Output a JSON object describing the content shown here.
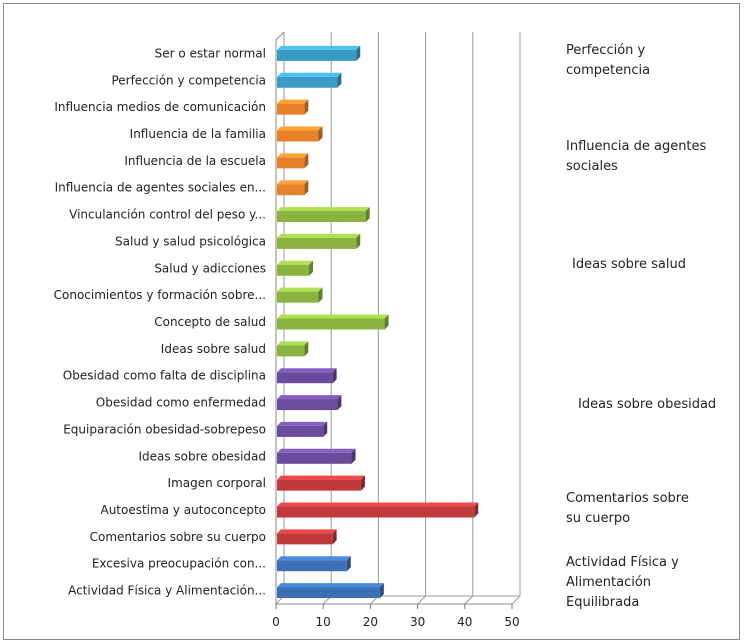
{
  "chart_data": {
    "type": "bar",
    "orientation": "horizontal",
    "title": "",
    "xlabel": "",
    "ylabel": "",
    "xlim": [
      0,
      50
    ],
    "xticks": [
      "0",
      "10",
      "20",
      "30",
      "40",
      "50"
    ],
    "grid": true,
    "categories": [
      "Ser o estar normal",
      "Perfección y competencia",
      "Influencia medios de comunicación",
      "Influencia de la familia",
      "Influencia de la escuela",
      "Influencia de agentes sociales en...",
      "Vinculanción control del peso y...",
      "Salud y salud psicológica",
      "Salud y adicciones",
      "Conocimientos y formación sobre...",
      "Concepto de salud",
      "Ideas sobre salud",
      "Obesidad como falta de disciplina",
      "Obesidad como enfermedad",
      "Equiparación obesidad-sobrepeso",
      "Ideas sobre obesidad",
      "Imagen corporal",
      "Autoestima y autoconcepto",
      "Comentarios sobre su cuerpo",
      "Excesiva preocupación con...",
      "Actividad Física y Alimentación..."
    ],
    "values": [
      17,
      13,
      6,
      9,
      6,
      6,
      19,
      17,
      7,
      9,
      23,
      6,
      12,
      13,
      10,
      16,
      18,
      42,
      12,
      15,
      22
    ],
    "bar_groups": [
      0,
      0,
      1,
      1,
      1,
      1,
      2,
      2,
      2,
      2,
      2,
      2,
      3,
      3,
      3,
      3,
      4,
      4,
      4,
      5,
      5
    ],
    "group_colors": [
      "#3a9cc4",
      "#e8822a",
      "#8ab43f",
      "#6a4c9c",
      "#c0393b",
      "#3d6fb6"
    ],
    "groups": [
      {
        "lines": [
          "Perfección y",
          "competencia"
        ]
      },
      {
        "lines": [
          "Influencia de agentes",
          "sociales"
        ]
      },
      {
        "lines": [
          "Ideas sobre salud"
        ]
      },
      {
        "lines": [
          "Ideas sobre obesidad"
        ]
      },
      {
        "lines": [
          "Comentarios sobre",
          "su cuerpo"
        ]
      },
      {
        "lines": [
          "Actividad Física y",
          "Alimentación",
          "Equilibrada"
        ]
      }
    ]
  }
}
